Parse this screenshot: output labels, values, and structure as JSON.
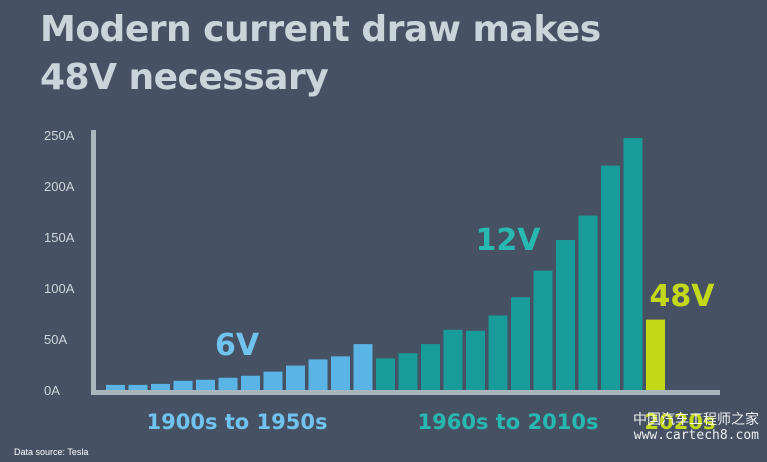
{
  "header": {
    "title_line1": "Modern current draw makes",
    "title_line2": "48V necessary"
  },
  "footer": {
    "source": "Data source: Tesla",
    "watermark_line1": "中国汽车工程师之家",
    "watermark_line2": "www.cartech8.com"
  },
  "colors": {
    "background": "#465263",
    "axis": "#a9b6bc",
    "tick_text": "#cdd6da",
    "era_6v": "#5ab4e6",
    "era_12v": "#189c9a",
    "era_48v": "#c4d81a",
    "title": "#c9d5da"
  },
  "chart_data": {
    "type": "bar",
    "ylim": [
      0,
      250
    ],
    "y_ticks": [
      "0A",
      "50A",
      "100A",
      "150A",
      "200A",
      "250A"
    ],
    "grid": false,
    "legend": "none",
    "groups": [
      {
        "voltage_label": "6V",
        "period_label": "1900s to 1950s",
        "color": "#5ab4e6",
        "values": [
          5,
          5,
          6,
          9,
          10,
          12,
          14,
          18,
          24,
          30,
          33,
          45
        ]
      },
      {
        "voltage_label": "12V",
        "period_label": "1960s to 2010s",
        "color": "#189c9a",
        "values": [
          31,
          36,
          45,
          59,
          58,
          73,
          91,
          117,
          147,
          171,
          220,
          247
        ]
      },
      {
        "voltage_label": "48V",
        "period_label": "2020s",
        "color": "#c4d81a",
        "values": [
          69
        ]
      }
    ]
  }
}
